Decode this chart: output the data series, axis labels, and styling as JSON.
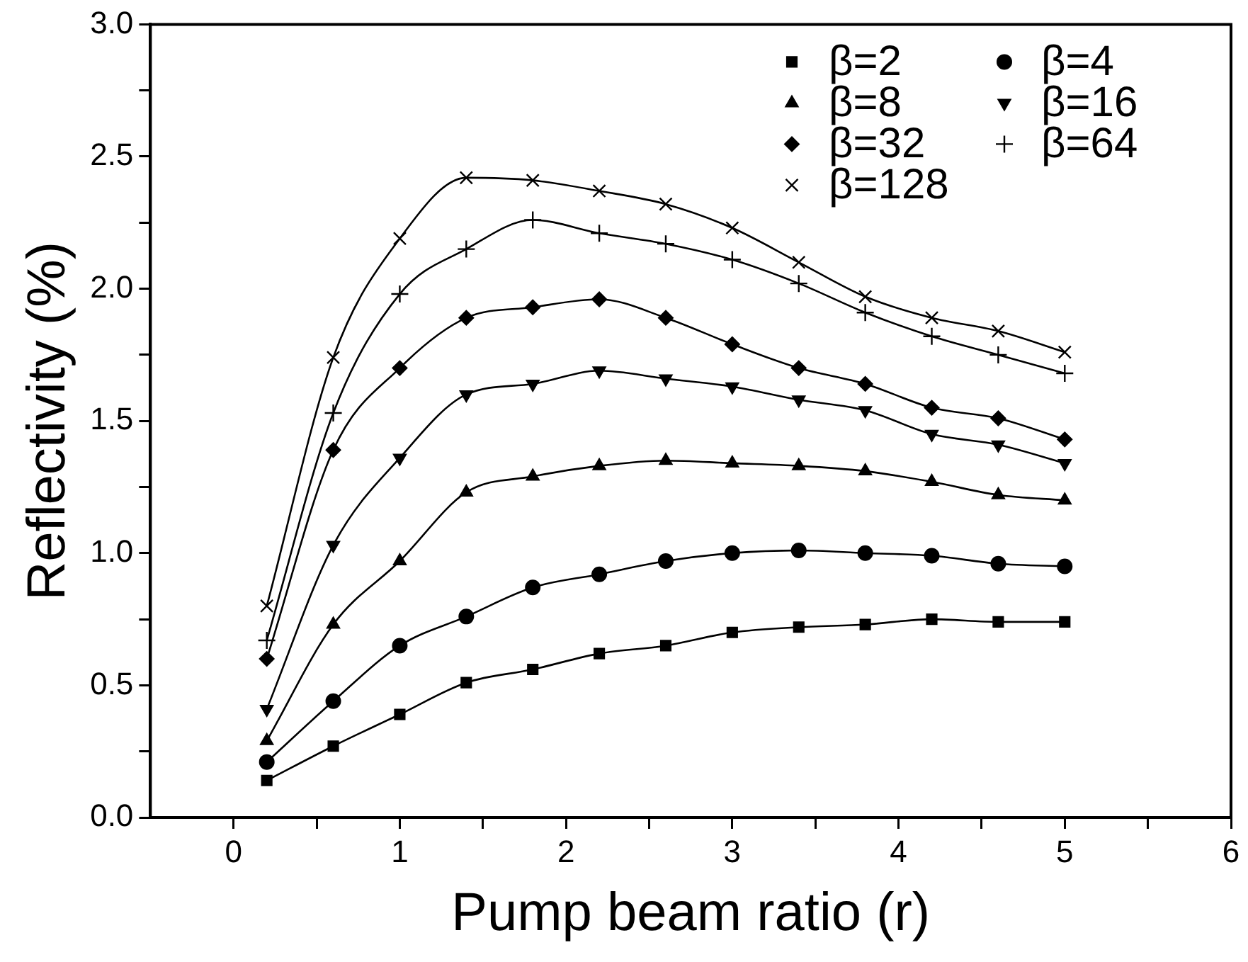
{
  "chart_data": {
    "type": "line",
    "xlabel": "Pump beam ratio (r)",
    "ylabel": "Reflectivity (%)",
    "x": [
      0.2,
      0.6,
      1.0,
      1.4,
      1.8,
      2.2,
      2.6,
      3.0,
      3.4,
      3.8,
      4.2,
      4.6,
      5.0
    ],
    "xlim": [
      -0.5,
      6
    ],
    "xticks": [
      0,
      {
        "value": 0.5,
        "label": null
      },
      1,
      {
        "value": 1.5,
        "label": null
      },
      2,
      {
        "value": 2.5,
        "label": null
      },
      3,
      {
        "value": 3.5,
        "label": null
      },
      4,
      {
        "value": 4.5,
        "label": null
      },
      5,
      {
        "value": 5.5,
        "label": null
      },
      6
    ],
    "ylim": [
      0,
      3
    ],
    "yticks": [
      {
        "value": 0,
        "label": "0.0"
      },
      {
        "value": 0.25,
        "label": null
      },
      {
        "value": 0.5,
        "label": "0.5"
      },
      {
        "value": 0.75,
        "label": null
      },
      {
        "value": 1,
        "label": "1.0"
      },
      {
        "value": 1.25,
        "label": null
      },
      {
        "value": 1.5,
        "label": "1.5"
      },
      {
        "value": 1.75,
        "label": null
      },
      {
        "value": 2,
        "label": "2.0"
      },
      {
        "value": 2.25,
        "label": null
      },
      {
        "value": 2.5,
        "label": "2.5"
      },
      {
        "value": 2.75,
        "label": null
      },
      {
        "value": 3,
        "label": "3.0"
      }
    ],
    "grid": false,
    "legend": "top right",
    "line_style": "solid",
    "series": [
      {
        "name": "β=2",
        "color": "#000000",
        "marker": "square",
        "values": [
          0.14,
          0.27,
          0.39,
          0.51,
          0.56,
          0.62,
          0.65,
          0.7,
          0.72,
          0.73,
          0.75,
          0.74,
          0.74
        ]
      },
      {
        "name": "β=4",
        "color": "#000000",
        "marker": "circle",
        "values": [
          0.21,
          0.44,
          0.65,
          0.76,
          0.87,
          0.92,
          0.97,
          1.0,
          1.01,
          1.0,
          0.99,
          0.96,
          0.95
        ]
      },
      {
        "name": "β=8",
        "color": "#000000",
        "marker": "triangle",
        "values": [
          0.29,
          0.73,
          0.97,
          1.23,
          1.29,
          1.33,
          1.35,
          1.34,
          1.33,
          1.31,
          1.27,
          1.22,
          1.2
        ]
      },
      {
        "name": "β=16",
        "color": "#000000",
        "marker": "triangle_down",
        "values": [
          0.41,
          1.03,
          1.36,
          1.6,
          1.64,
          1.69,
          1.66,
          1.63,
          1.58,
          1.54,
          1.45,
          1.41,
          1.34
        ]
      },
      {
        "name": "β=32",
        "color": "#000000",
        "marker": "diamond",
        "values": [
          0.6,
          1.39,
          1.7,
          1.89,
          1.93,
          1.96,
          1.89,
          1.79,
          1.7,
          1.64,
          1.55,
          1.51,
          1.43
        ]
      },
      {
        "name": "β=64",
        "color": "#000000",
        "marker": "cross",
        "values": [
          0.67,
          1.53,
          1.98,
          2.15,
          2.26,
          2.21,
          2.17,
          2.11,
          2.02,
          1.91,
          1.82,
          1.75,
          1.68
        ]
      },
      {
        "name": "β=128",
        "color": "#000000",
        "marker": "x",
        "values": [
          0.8,
          1.74,
          2.19,
          2.42,
          2.41,
          2.37,
          2.32,
          2.23,
          2.1,
          1.97,
          1.89,
          1.84,
          1.76
        ]
      }
    ]
  }
}
